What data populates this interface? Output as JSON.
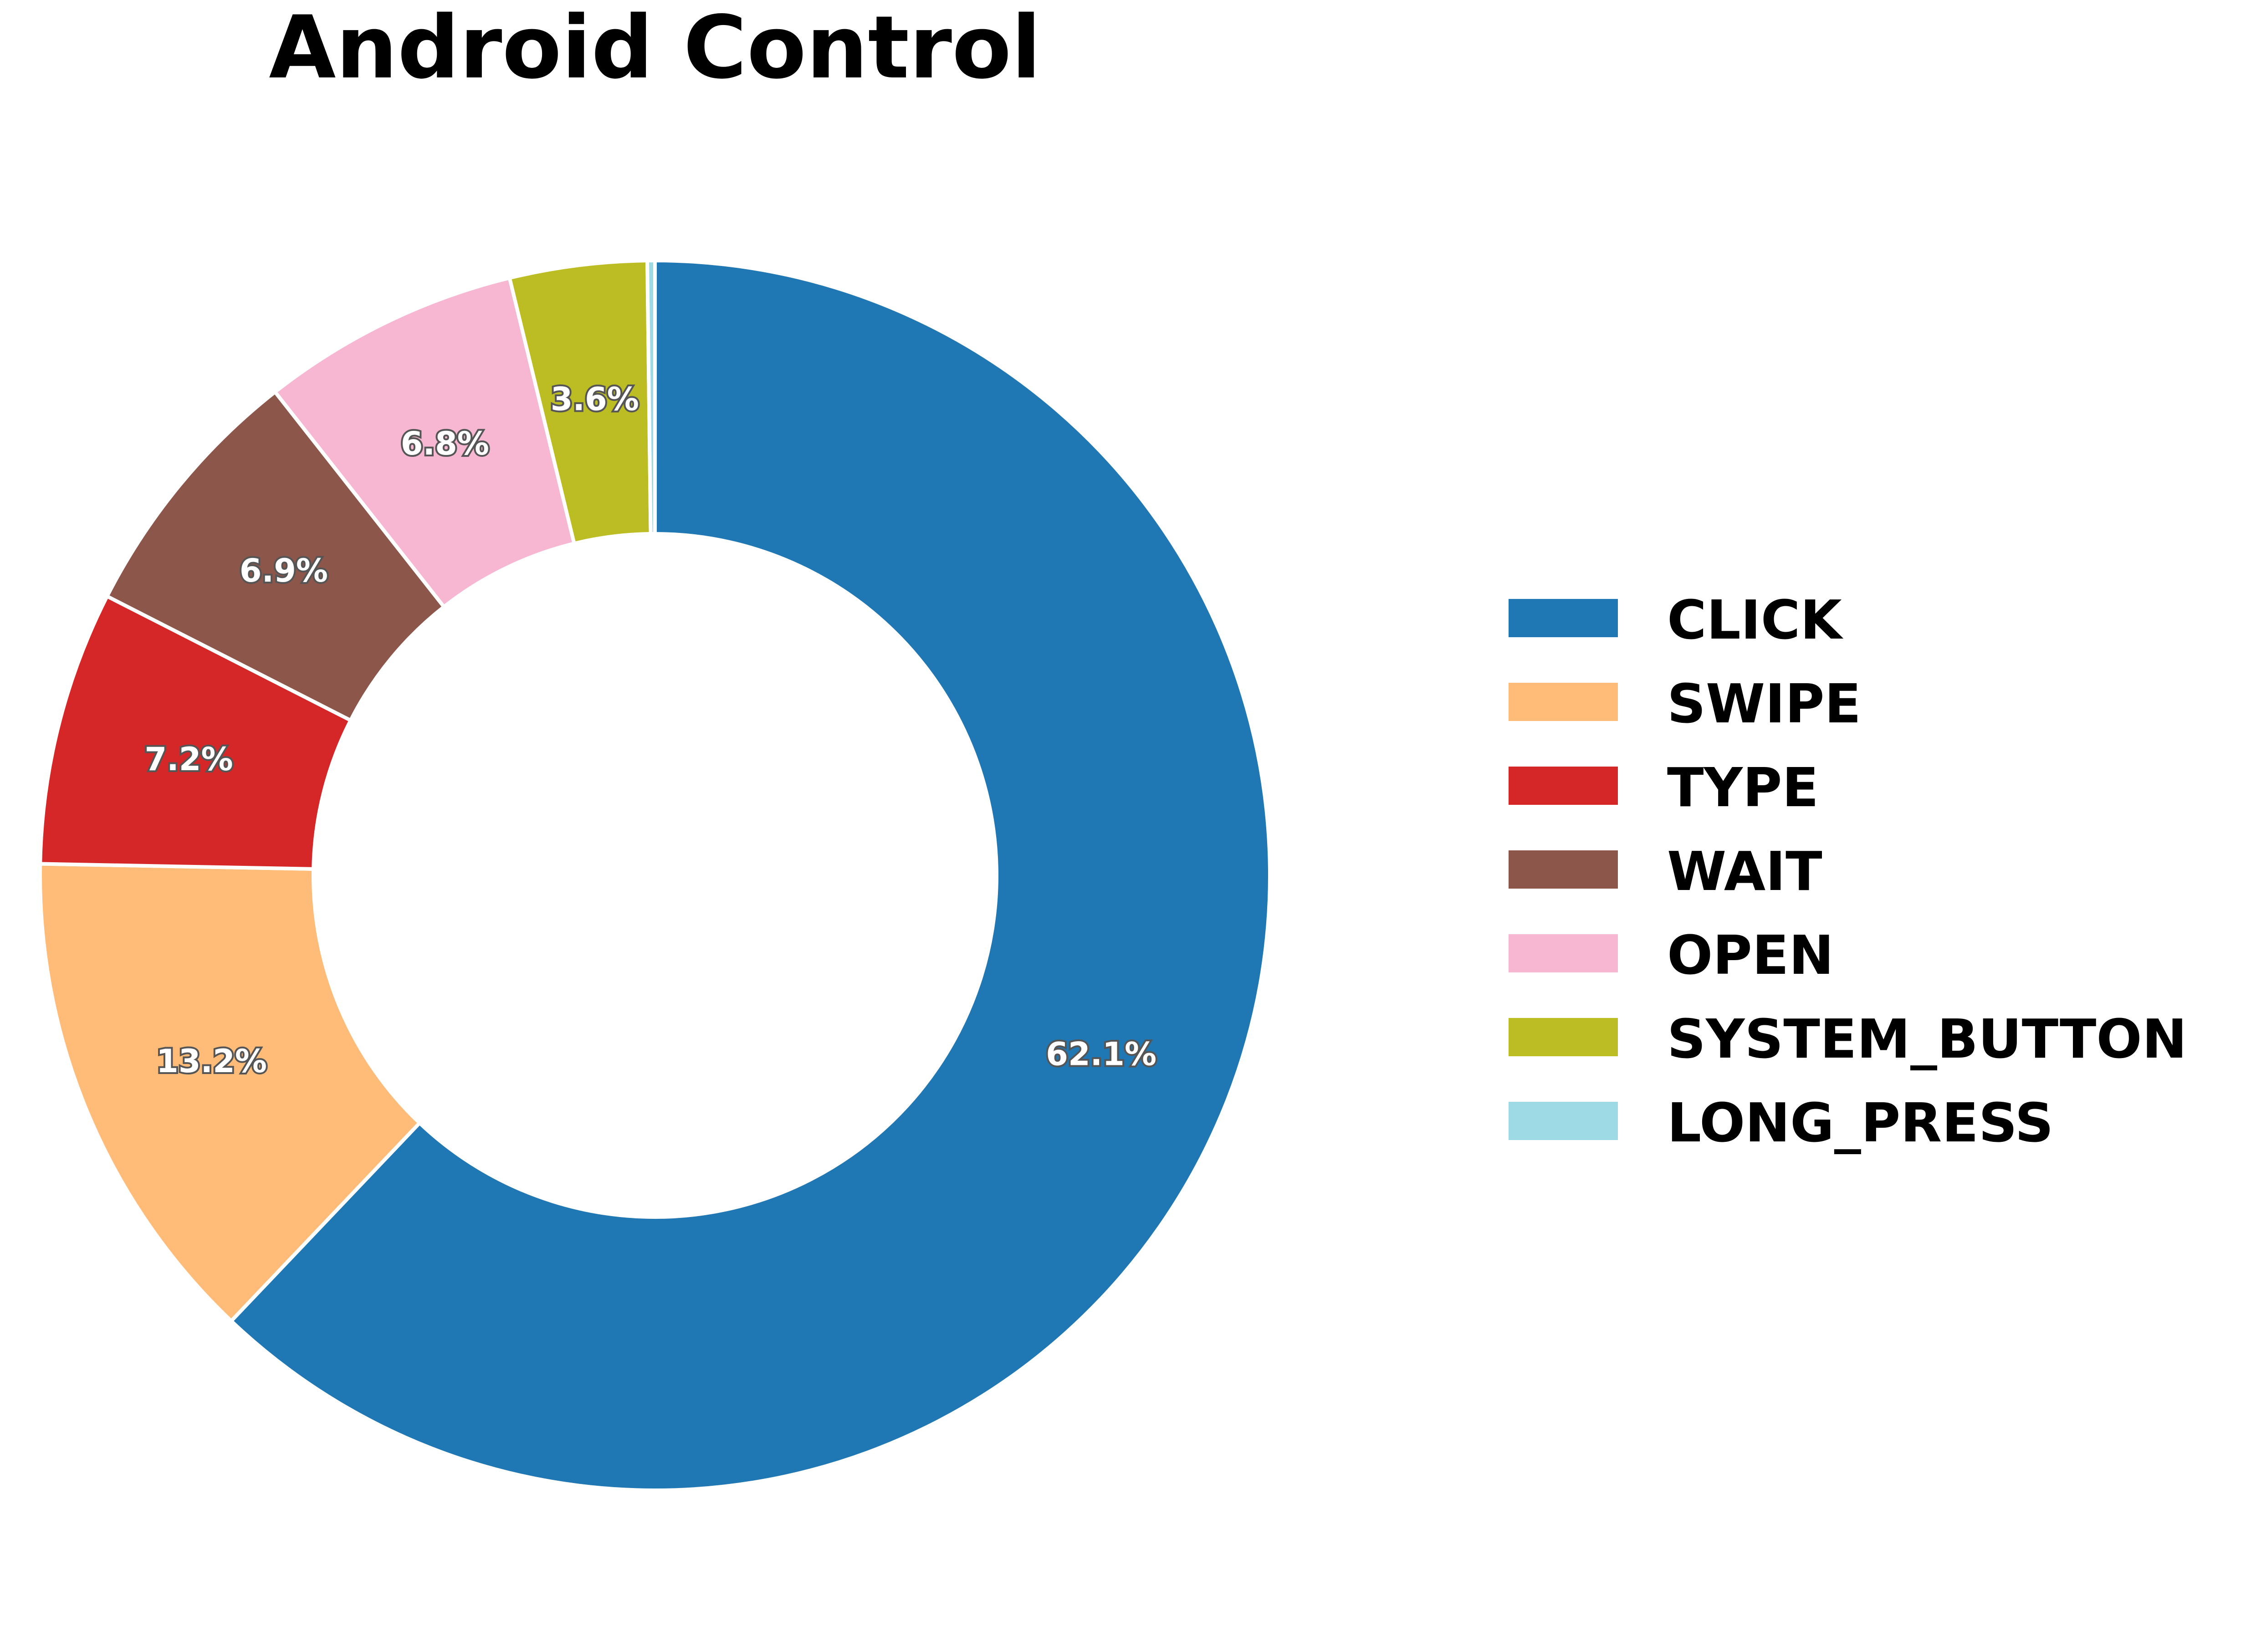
{
  "chart_data": {
    "type": "pie",
    "style": "donut",
    "title": "Android Control",
    "categories": [
      "CLICK",
      "SWIPE",
      "TYPE",
      "WAIT",
      "OPEN",
      "SYSTEM_BUTTON",
      "LONG_PRESS"
    ],
    "values": [
      62.1,
      13.2,
      7.2,
      6.9,
      6.8,
      3.6,
      0.2
    ],
    "labels": [
      "62.1%",
      "13.2%",
      "7.2%",
      "6.9%",
      "6.8%",
      "3.6%",
      ""
    ],
    "colors": [
      "#1f77b4",
      "#ffbb78",
      "#d62728",
      "#8c564b",
      "#f7b6d2",
      "#bcbd22",
      "#9edae5"
    ],
    "start_angle_deg": 90,
    "direction": "clockwise",
    "legend_position": "right"
  }
}
